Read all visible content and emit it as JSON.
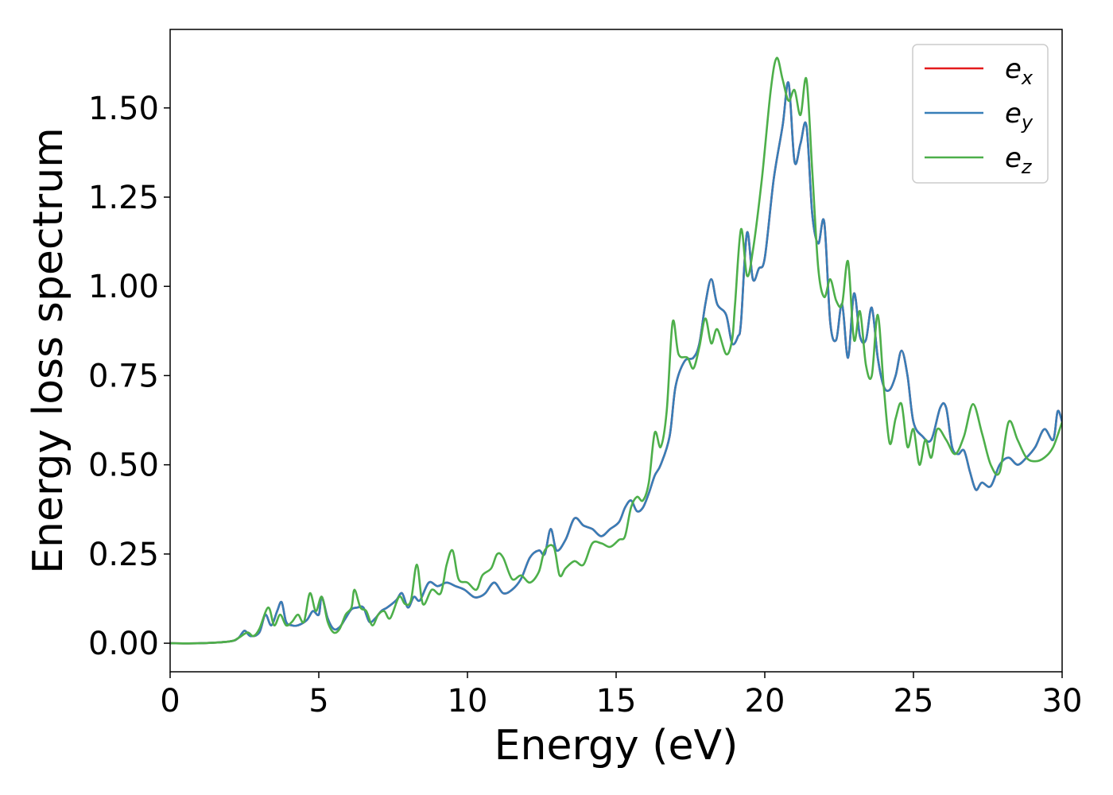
{
  "chart_data": {
    "type": "line",
    "title": "",
    "xlabel": "Energy (eV)",
    "ylabel": "Energy loss spectrum",
    "xlim": [
      0,
      30
    ],
    "ylim": [
      -0.08,
      1.72
    ],
    "xticks": [
      0,
      5,
      10,
      15,
      20,
      25,
      30
    ],
    "xtick_labels": [
      "0",
      "5",
      "10",
      "15",
      "20",
      "25",
      "30"
    ],
    "yticks": [
      0.0,
      0.25,
      0.5,
      0.75,
      1.0,
      1.25,
      1.5
    ],
    "ytick_labels": [
      "0.00",
      "0.25",
      "0.50",
      "0.75",
      "1.00",
      "1.25",
      "1.50"
    ],
    "grid": false,
    "legend_position": "top-right",
    "series": [
      {
        "name": "e_x",
        "legend_base": "e",
        "legend_sub": "x",
        "color": "#e41a1c",
        "x": [
          0,
          1,
          2,
          2.3,
          2.5,
          2.7,
          3.0,
          3.2,
          3.4,
          3.6,
          3.75,
          3.9,
          4.1,
          4.3,
          4.6,
          4.8,
          5.0,
          5.1,
          5.3,
          5.5,
          5.7,
          5.9,
          6.1,
          6.3,
          6.5,
          6.7,
          6.9,
          7.1,
          7.3,
          7.6,
          7.8,
          8.0,
          8.2,
          8.4,
          8.7,
          9.0,
          9.3,
          9.6,
          9.9,
          10.2,
          10.4,
          10.6,
          10.9,
          11.2,
          11.5,
          11.8,
          12.1,
          12.4,
          12.6,
          12.8,
          13.0,
          13.3,
          13.6,
          13.9,
          14.2,
          14.5,
          14.8,
          15.1,
          15.3,
          15.5,
          15.7,
          15.9,
          16.1,
          16.3,
          16.5,
          16.8,
          17.0,
          17.3,
          17.6,
          17.8,
          18.0,
          18.2,
          18.4,
          18.7,
          18.9,
          19.1,
          19.2,
          19.4,
          19.6,
          19.8,
          20.0,
          20.3,
          20.6,
          20.8,
          21.0,
          21.2,
          21.4,
          21.6,
          21.8,
          22.0,
          22.2,
          22.4,
          22.6,
          22.8,
          23.0,
          23.2,
          23.4,
          23.6,
          23.8,
          24.0,
          24.2,
          24.4,
          24.6,
          24.8,
          25.0,
          25.3,
          25.6,
          25.9,
          26.1,
          26.3,
          26.5,
          26.7,
          26.9,
          27.1,
          27.3,
          27.6,
          27.9,
          28.2,
          28.5,
          28.8,
          29.1,
          29.4,
          29.7,
          29.85,
          30
        ],
        "values": [
          0,
          0,
          0.005,
          0.015,
          0.035,
          0.02,
          0.03,
          0.08,
          0.05,
          0.09,
          0.115,
          0.06,
          0.05,
          0.05,
          0.065,
          0.09,
          0.08,
          0.13,
          0.07,
          0.04,
          0.045,
          0.07,
          0.095,
          0.1,
          0.1,
          0.06,
          0.07,
          0.09,
          0.1,
          0.12,
          0.14,
          0.1,
          0.13,
          0.12,
          0.17,
          0.16,
          0.17,
          0.16,
          0.15,
          0.13,
          0.13,
          0.14,
          0.17,
          0.14,
          0.15,
          0.18,
          0.24,
          0.26,
          0.25,
          0.32,
          0.26,
          0.29,
          0.35,
          0.33,
          0.32,
          0.3,
          0.32,
          0.34,
          0.38,
          0.4,
          0.37,
          0.38,
          0.42,
          0.47,
          0.5,
          0.58,
          0.72,
          0.79,
          0.8,
          0.84,
          0.95,
          1.02,
          0.95,
          0.92,
          0.84,
          0.86,
          0.9,
          1.15,
          1.02,
          1.05,
          1.08,
          1.3,
          1.45,
          1.57,
          1.35,
          1.4,
          1.45,
          1.2,
          1.12,
          1.18,
          0.9,
          0.85,
          0.95,
          0.8,
          0.98,
          0.86,
          0.85,
          0.94,
          0.8,
          0.72,
          0.71,
          0.75,
          0.82,
          0.75,
          0.62,
          0.58,
          0.57,
          0.66,
          0.66,
          0.55,
          0.53,
          0.54,
          0.48,
          0.43,
          0.45,
          0.44,
          0.5,
          0.52,
          0.5,
          0.52,
          0.55,
          0.6,
          0.57,
          0.65,
          0.62
        ]
      },
      {
        "name": "e_y",
        "legend_base": "e",
        "legend_sub": "y",
        "color": "#377eb8",
        "x": [
          0,
          1,
          2,
          2.3,
          2.5,
          2.7,
          3.0,
          3.2,
          3.4,
          3.6,
          3.75,
          3.9,
          4.1,
          4.3,
          4.6,
          4.8,
          5.0,
          5.1,
          5.3,
          5.5,
          5.7,
          5.9,
          6.1,
          6.3,
          6.5,
          6.7,
          6.9,
          7.1,
          7.3,
          7.6,
          7.8,
          8.0,
          8.2,
          8.4,
          8.7,
          9.0,
          9.3,
          9.6,
          9.9,
          10.2,
          10.4,
          10.6,
          10.9,
          11.2,
          11.5,
          11.8,
          12.1,
          12.4,
          12.6,
          12.8,
          13.0,
          13.3,
          13.6,
          13.9,
          14.2,
          14.5,
          14.8,
          15.1,
          15.3,
          15.5,
          15.7,
          15.9,
          16.1,
          16.3,
          16.5,
          16.8,
          17.0,
          17.3,
          17.6,
          17.8,
          18.0,
          18.2,
          18.4,
          18.7,
          18.9,
          19.1,
          19.2,
          19.4,
          19.6,
          19.8,
          20.0,
          20.3,
          20.6,
          20.8,
          21.0,
          21.2,
          21.4,
          21.6,
          21.8,
          22.0,
          22.2,
          22.4,
          22.6,
          22.8,
          23.0,
          23.2,
          23.4,
          23.6,
          23.8,
          24.0,
          24.2,
          24.4,
          24.6,
          24.8,
          25.0,
          25.3,
          25.6,
          25.9,
          26.1,
          26.3,
          26.5,
          26.7,
          26.9,
          27.1,
          27.3,
          27.6,
          27.9,
          28.2,
          28.5,
          28.8,
          29.1,
          29.4,
          29.7,
          29.85,
          30
        ],
        "values": [
          0,
          0,
          0.005,
          0.015,
          0.035,
          0.02,
          0.03,
          0.08,
          0.05,
          0.09,
          0.115,
          0.06,
          0.05,
          0.05,
          0.065,
          0.09,
          0.08,
          0.13,
          0.07,
          0.04,
          0.045,
          0.07,
          0.095,
          0.1,
          0.1,
          0.06,
          0.07,
          0.09,
          0.1,
          0.12,
          0.14,
          0.1,
          0.13,
          0.12,
          0.17,
          0.16,
          0.17,
          0.16,
          0.15,
          0.13,
          0.13,
          0.14,
          0.17,
          0.14,
          0.15,
          0.18,
          0.24,
          0.26,
          0.25,
          0.32,
          0.26,
          0.29,
          0.35,
          0.33,
          0.32,
          0.3,
          0.32,
          0.34,
          0.38,
          0.4,
          0.37,
          0.38,
          0.42,
          0.47,
          0.5,
          0.58,
          0.72,
          0.79,
          0.8,
          0.84,
          0.95,
          1.02,
          0.95,
          0.92,
          0.84,
          0.86,
          0.9,
          1.15,
          1.02,
          1.05,
          1.08,
          1.3,
          1.45,
          1.57,
          1.35,
          1.4,
          1.45,
          1.2,
          1.12,
          1.18,
          0.9,
          0.85,
          0.95,
          0.8,
          0.98,
          0.86,
          0.85,
          0.94,
          0.8,
          0.72,
          0.71,
          0.75,
          0.82,
          0.75,
          0.62,
          0.58,
          0.57,
          0.66,
          0.66,
          0.55,
          0.53,
          0.54,
          0.48,
          0.43,
          0.45,
          0.44,
          0.5,
          0.52,
          0.5,
          0.52,
          0.55,
          0.6,
          0.57,
          0.65,
          0.62
        ]
      },
      {
        "name": "e_z",
        "legend_base": "e",
        "legend_sub": "z",
        "color": "#4daf4a",
        "x": [
          0,
          1,
          2,
          2.3,
          2.6,
          2.8,
          3.0,
          3.3,
          3.5,
          3.7,
          3.9,
          4.1,
          4.3,
          4.5,
          4.7,
          4.9,
          5.1,
          5.3,
          5.5,
          5.7,
          5.9,
          6.1,
          6.2,
          6.4,
          6.6,
          6.8,
          7.0,
          7.2,
          7.4,
          7.7,
          7.9,
          8.1,
          8.3,
          8.5,
          8.8,
          9.1,
          9.3,
          9.5,
          9.7,
          10.0,
          10.3,
          10.5,
          10.8,
          11.0,
          11.2,
          11.5,
          11.8,
          12.1,
          12.4,
          12.6,
          12.9,
          13.1,
          13.3,
          13.6,
          13.9,
          14.2,
          14.5,
          14.8,
          15.1,
          15.3,
          15.5,
          15.7,
          15.9,
          16.1,
          16.3,
          16.5,
          16.7,
          16.9,
          17.1,
          17.4,
          17.6,
          17.8,
          18.0,
          18.2,
          18.4,
          18.7,
          18.9,
          19.0,
          19.2,
          19.4,
          19.6,
          19.9,
          20.2,
          20.4,
          20.6,
          20.8,
          21.0,
          21.2,
          21.4,
          21.6,
          21.8,
          22.0,
          22.2,
          22.4,
          22.6,
          22.8,
          23.0,
          23.2,
          23.4,
          23.6,
          23.8,
          24.0,
          24.2,
          24.4,
          24.6,
          24.8,
          25.0,
          25.2,
          25.4,
          25.6,
          25.8,
          26.1,
          26.4,
          26.7,
          27.0,
          27.3,
          27.6,
          27.9,
          28.2,
          28.5,
          28.8,
          29.1,
          29.4,
          29.7,
          30
        ],
        "values": [
          0,
          0,
          0.005,
          0.015,
          0.03,
          0.02,
          0.04,
          0.1,
          0.05,
          0.08,
          0.05,
          0.06,
          0.08,
          0.06,
          0.14,
          0.09,
          0.13,
          0.06,
          0.03,
          0.04,
          0.08,
          0.1,
          0.15,
          0.1,
          0.09,
          0.05,
          0.08,
          0.09,
          0.07,
          0.13,
          0.11,
          0.12,
          0.22,
          0.11,
          0.15,
          0.14,
          0.22,
          0.26,
          0.18,
          0.17,
          0.15,
          0.19,
          0.21,
          0.25,
          0.24,
          0.18,
          0.19,
          0.17,
          0.2,
          0.26,
          0.27,
          0.19,
          0.21,
          0.23,
          0.22,
          0.28,
          0.28,
          0.27,
          0.29,
          0.3,
          0.38,
          0.41,
          0.4,
          0.45,
          0.59,
          0.55,
          0.65,
          0.9,
          0.81,
          0.8,
          0.77,
          0.83,
          0.91,
          0.84,
          0.88,
          0.81,
          0.85,
          0.95,
          1.16,
          1.03,
          1.1,
          1.3,
          1.55,
          1.64,
          1.58,
          1.52,
          1.55,
          1.48,
          1.58,
          1.32,
          1.05,
          0.97,
          1.02,
          0.96,
          0.95,
          1.07,
          0.85,
          0.93,
          0.78,
          0.75,
          0.92,
          0.72,
          0.56,
          0.63,
          0.67,
          0.55,
          0.6,
          0.5,
          0.57,
          0.52,
          0.6,
          0.57,
          0.53,
          0.58,
          0.67,
          0.59,
          0.5,
          0.48,
          0.62,
          0.57,
          0.52,
          0.51,
          0.52,
          0.55,
          0.62
        ]
      }
    ]
  }
}
